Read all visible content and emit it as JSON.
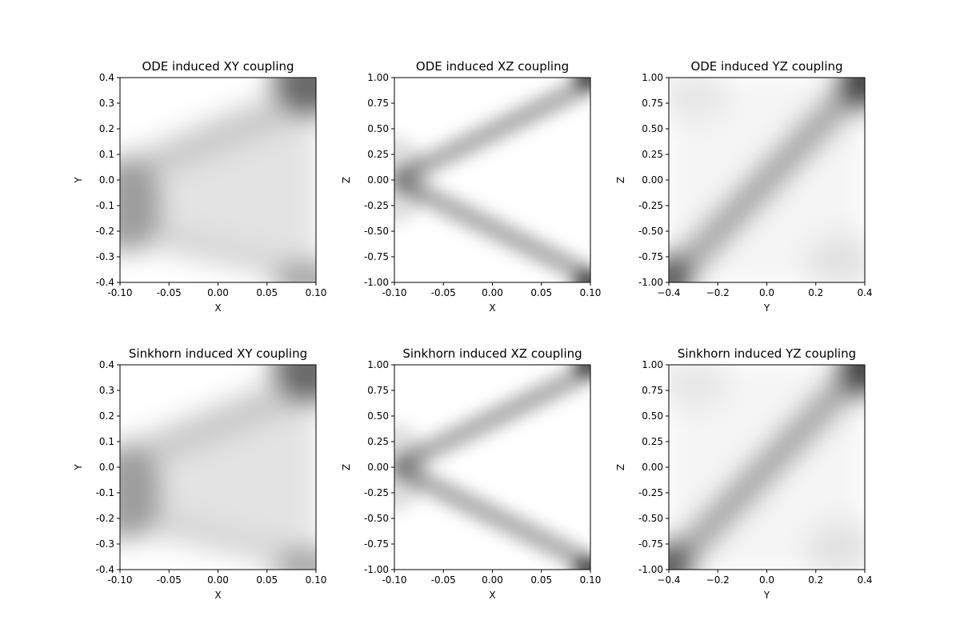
{
  "colors": {
    "colormap_low": "#ffffff",
    "colormap_high": "#000000",
    "axis": "#000000"
  },
  "chart_data": [
    {
      "type": "heatmap",
      "title": "ODE induced XY coupling",
      "xlabel": "X",
      "ylabel": "Y",
      "xlim": [
        -0.1,
        0.1
      ],
      "ylim": [
        -0.4,
        0.4
      ],
      "xticks": [
        "-0.10",
        "-0.05",
        "0.00",
        "0.05",
        "0.10"
      ],
      "yticks": [
        "-0.4",
        "-0.3",
        "-0.2",
        "-0.1",
        "0.0",
        "0.1",
        "0.2",
        "0.3",
        "0.4"
      ],
      "grid": false,
      "colormap": "Greys",
      "pattern": "dark at x≈-0.10,y≈-0.10; bands toward corners (0.10,0.40) and (0.10,-0.40); darkest at top-right"
    },
    {
      "type": "heatmap",
      "title": "ODE induced XZ coupling",
      "xlabel": "X",
      "ylabel": "Z",
      "xlim": [
        -0.1,
        0.1
      ],
      "ylim": [
        -1.0,
        1.0
      ],
      "xticks": [
        "-0.10",
        "-0.05",
        "0.00",
        "0.05",
        "0.10"
      ],
      "yticks": [
        "-1.00",
        "-0.75",
        "-0.50",
        "-0.25",
        "0.00",
        "0.25",
        "0.50",
        "0.75",
        "1.00"
      ],
      "grid": false,
      "colormap": "Greys",
      "pattern": "V-shape: bands from (-0.10,0.00) to (0.10,0.95) and (0.10,-0.95)"
    },
    {
      "type": "heatmap",
      "title": "ODE induced YZ coupling",
      "xlabel": "Y",
      "ylabel": "Z",
      "xlim": [
        -0.4,
        0.4
      ],
      "ylim": [
        -1.0,
        1.0
      ],
      "xticks": [
        "−0.4",
        "−0.2",
        "0.0",
        "0.2",
        "0.4"
      ],
      "yticks": [
        "-1.00",
        "-0.75",
        "-0.50",
        "-0.25",
        "0.00",
        "0.25",
        "0.50",
        "0.75",
        "1.00"
      ],
      "grid": false,
      "colormap": "Greys",
      "pattern": "diagonal band from (-0.40,-1.00) to (0.40,1.00), dark at both ends"
    },
    {
      "type": "heatmap",
      "title": "Sinkhorn induced XY coupling",
      "xlabel": "X",
      "ylabel": "Y",
      "xlim": [
        -0.1,
        0.1
      ],
      "ylim": [
        -0.4,
        0.4
      ],
      "xticks": [
        "-0.10",
        "-0.05",
        "0.00",
        "0.05",
        "0.10"
      ],
      "yticks": [
        "-0.4",
        "-0.3",
        "-0.2",
        "-0.1",
        "0.0",
        "0.1",
        "0.2",
        "0.3",
        "0.4"
      ],
      "grid": false,
      "colormap": "Greys",
      "pattern": "dark at x≈-0.10,y≈-0.10; bands toward corners (0.10,0.40) and (0.10,-0.40); darkest at top-right"
    },
    {
      "type": "heatmap",
      "title": "Sinkhorn induced XZ coupling",
      "xlabel": "X",
      "ylabel": "Z",
      "xlim": [
        -0.1,
        0.1
      ],
      "ylim": [
        -1.0,
        1.0
      ],
      "xticks": [
        "-0.10",
        "-0.05",
        "0.00",
        "0.05",
        "0.10"
      ],
      "yticks": [
        "-1.00",
        "-0.75",
        "-0.50",
        "-0.25",
        "0.00",
        "0.25",
        "0.50",
        "0.75",
        "1.00"
      ],
      "grid": false,
      "colormap": "Greys",
      "pattern": "V-shape: bands from (-0.10,0.00) to (0.10,0.95) and (0.10,-0.95)"
    },
    {
      "type": "heatmap",
      "title": "Sinkhorn induced YZ coupling",
      "xlabel": "Y",
      "ylabel": "Z",
      "xlim": [
        -0.4,
        0.4
      ],
      "ylim": [
        -1.0,
        1.0
      ],
      "xticks": [
        "−0.4",
        "−0.2",
        "0.0",
        "0.2",
        "0.4"
      ],
      "yticks": [
        "-1.00",
        "-0.75",
        "-0.50",
        "-0.25",
        "0.00",
        "0.25",
        "0.50",
        "0.75",
        "1.00"
      ],
      "grid": false,
      "colormap": "Greys",
      "pattern": "diagonal band from (-0.40,-1.00) to (0.40,1.00), dark at both ends"
    }
  ]
}
